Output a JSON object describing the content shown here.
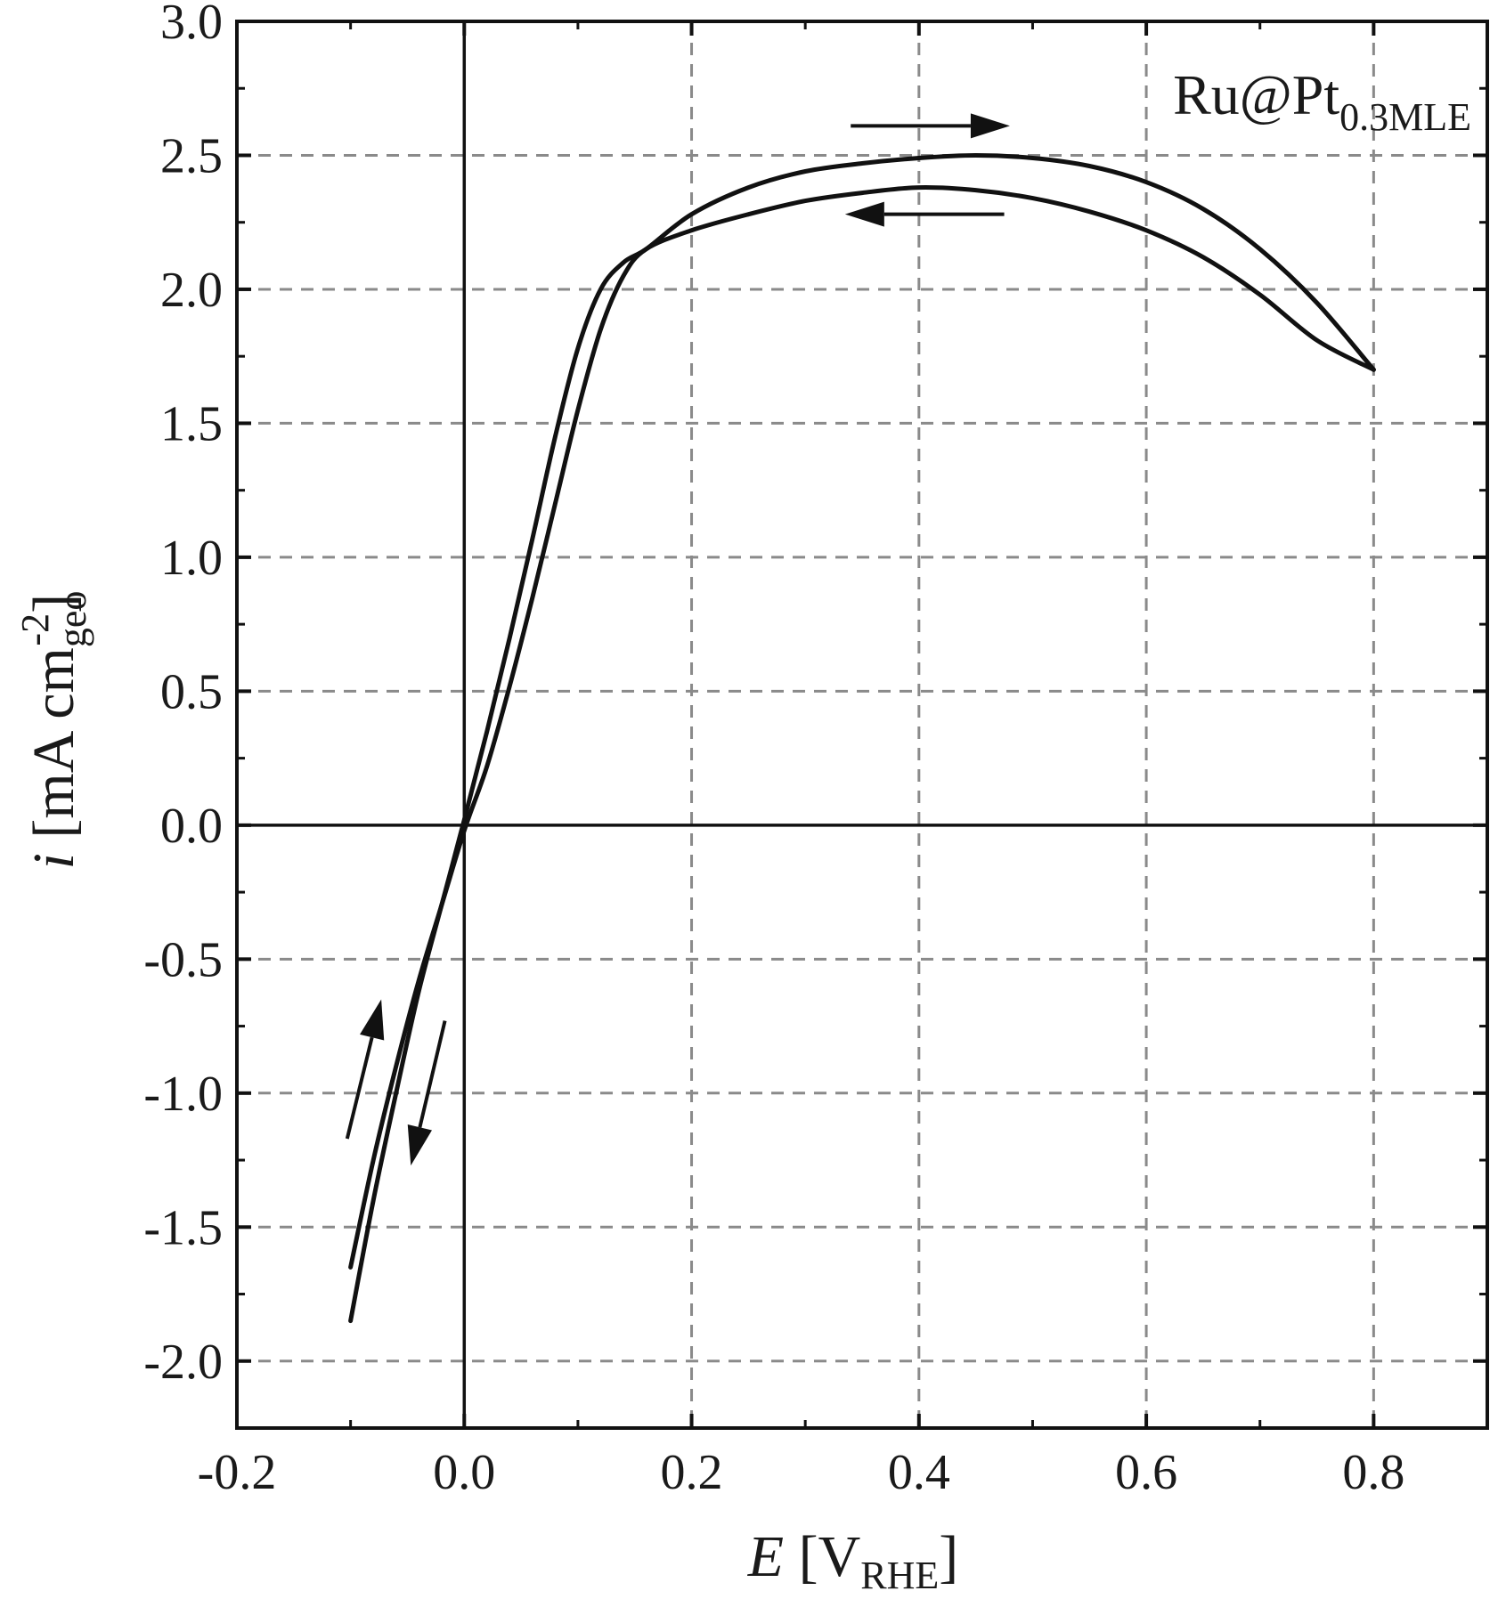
{
  "chart_data": {
    "type": "line",
    "title": "",
    "annotation": {
      "text": "Ru@Pt",
      "subscript": "0.3MLE"
    },
    "xlabel": {
      "italic": "E",
      "bracket_open": " [V",
      "subscript": "RHE",
      "bracket_close": "]"
    },
    "ylabel": {
      "italic": "i",
      "text": " [mA cm",
      "subscript": "geo",
      "superscript": "-2",
      "bracket_close": "]"
    },
    "xlim": [
      -0.2,
      0.9
    ],
    "ylim": [
      -2.25,
      3.0
    ],
    "x_ticks": [
      -0.2,
      0.0,
      0.2,
      0.4,
      0.6,
      0.8
    ],
    "x_tick_labels": [
      "-0.2",
      "0.0",
      "0.2",
      "0.4",
      "0.6",
      "0.8"
    ],
    "y_ticks": [
      -2.0,
      -1.5,
      -1.0,
      -0.5,
      0.0,
      0.5,
      1.0,
      1.5,
      2.0,
      2.5,
      3.0
    ],
    "y_tick_labels": [
      "-2.0",
      "-1.5",
      "-1.0",
      "-0.5",
      "0.0",
      "0.5",
      "1.0",
      "1.5",
      "2.0",
      "2.5",
      "3.0"
    ],
    "grid": true,
    "grid_style": "dashed",
    "colors": {
      "curve": "#111111",
      "grid": "#8a8a8a",
      "axis": "#111111"
    },
    "series": [
      {
        "x": [
          -0.1,
          -0.08,
          -0.06,
          -0.04,
          -0.02,
          0.0,
          0.02,
          0.04,
          0.06,
          0.08,
          0.1,
          0.12,
          0.14,
          0.16,
          0.2,
          0.25,
          0.3,
          0.35,
          0.4,
          0.45,
          0.5,
          0.55,
          0.6,
          0.65,
          0.7,
          0.75,
          0.8
        ],
        "y": [
          -1.85,
          -1.4,
          -1.0,
          -0.62,
          -0.3,
          0.02,
          0.35,
          0.7,
          1.07,
          1.45,
          1.78,
          2.0,
          2.1,
          2.15,
          2.28,
          2.38,
          2.44,
          2.47,
          2.49,
          2.5,
          2.49,
          2.46,
          2.4,
          2.3,
          2.15,
          1.95,
          1.7
        ]
      },
      {
        "x": [
          0.8,
          0.75,
          0.7,
          0.65,
          0.6,
          0.55,
          0.5,
          0.45,
          0.4,
          0.35,
          0.3,
          0.25,
          0.2,
          0.16,
          0.14,
          0.12,
          0.1,
          0.08,
          0.06,
          0.04,
          0.02,
          0.0,
          -0.02,
          -0.04,
          -0.06,
          -0.08,
          -0.1
        ],
        "y": [
          1.7,
          1.81,
          1.98,
          2.12,
          2.22,
          2.29,
          2.34,
          2.37,
          2.38,
          2.36,
          2.33,
          2.28,
          2.22,
          2.15,
          2.05,
          1.85,
          1.55,
          1.2,
          0.85,
          0.52,
          0.22,
          -0.02,
          -0.3,
          -0.58,
          -0.9,
          -1.25,
          -1.65
        ]
      }
    ],
    "direction_arrows": [
      {
        "from": [
          0.34,
          2.61
        ],
        "to": [
          0.48,
          2.61
        ]
      },
      {
        "from": [
          0.475,
          2.28
        ],
        "to": [
          0.335,
          2.28
        ]
      },
      {
        "from": [
          -0.103,
          -1.17
        ],
        "to": [
          -0.073,
          -0.65
        ]
      },
      {
        "from": [
          -0.017,
          -0.73
        ],
        "to": [
          -0.047,
          -1.27
        ]
      }
    ]
  }
}
